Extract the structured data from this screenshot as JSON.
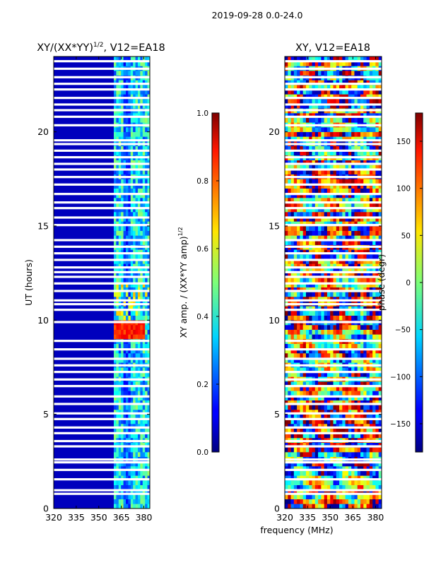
{
  "figure": {
    "suptitle": "2019-09-28 0.0-24.0",
    "xlabel_shared": "frequency (MHz)"
  },
  "chart_data": [
    {
      "type": "heatmap",
      "title": "XY/(XX*YY)^1/2, V12=EA18",
      "title_main": "XY/(XX*YY)",
      "title_sup": "1/2",
      "title_rest": ", V12=EA18",
      "xlabel": "",
      "ylabel": "UT (hours)",
      "xlim": [
        320,
        384
      ],
      "ylim": [
        0,
        24
      ],
      "xticks": [
        320,
        335,
        350,
        365,
        380
      ],
      "yticks": [
        0,
        5,
        10,
        15,
        20
      ],
      "colorbar": {
        "label_main": "XY amp. / (XX*YY amp)",
        "label_sup": "1/2",
        "range": [
          0.0,
          1.0
        ],
        "ticks": [
          "0.0",
          "0.2",
          "0.4",
          "0.6",
          "0.8",
          "1.0"
        ],
        "colormap": "jet"
      },
      "notes": "Low amplitude (~0.05) at 320-360 MHz; elevated amplitude (0.3-0.6) at ~360-384 MHz, peak ~0.85 near 9-9.8 UT."
    },
    {
      "type": "heatmap",
      "title": "XY, V12=EA18",
      "xlabel": "frequency (MHz)",
      "ylabel": "",
      "xlim": [
        320,
        384
      ],
      "ylim": [
        0,
        24
      ],
      "xticks": [
        320,
        335,
        350,
        365,
        380
      ],
      "yticks": [
        0,
        5,
        10,
        15,
        20
      ],
      "colorbar": {
        "label": "phase (degr)",
        "range": [
          -180,
          180
        ],
        "ticks": [
          "−150",
          "−100",
          "−50",
          "0",
          "50",
          "100",
          "150"
        ],
        "colormap": "jet"
      },
      "notes": "Noisy phase pattern spanning the full range."
    }
  ],
  "gaps_hours": [
    0.78,
    0.97,
    1.55,
    2.05,
    2.45,
    2.6,
    3.3,
    3.58,
    4.0,
    4.3,
    4.75,
    5.05,
    5.55,
    5.95,
    6.5,
    6.85,
    7.25,
    7.6,
    7.95,
    8.45,
    8.9,
    9.9,
    10.55,
    10.85,
    11.05,
    11.55,
    11.95,
    12.3,
    12.55,
    12.8,
    13.2,
    13.55,
    13.9,
    14.25,
    15.05,
    15.45,
    15.95,
    16.25,
    16.7,
    17.2,
    17.6,
    18.0,
    18.3,
    18.65,
    19.0,
    19.35,
    19.55,
    20.35,
    20.8,
    21.15,
    21.45,
    21.8,
    22.25,
    22.55,
    22.9,
    23.35,
    23.75
  ]
}
